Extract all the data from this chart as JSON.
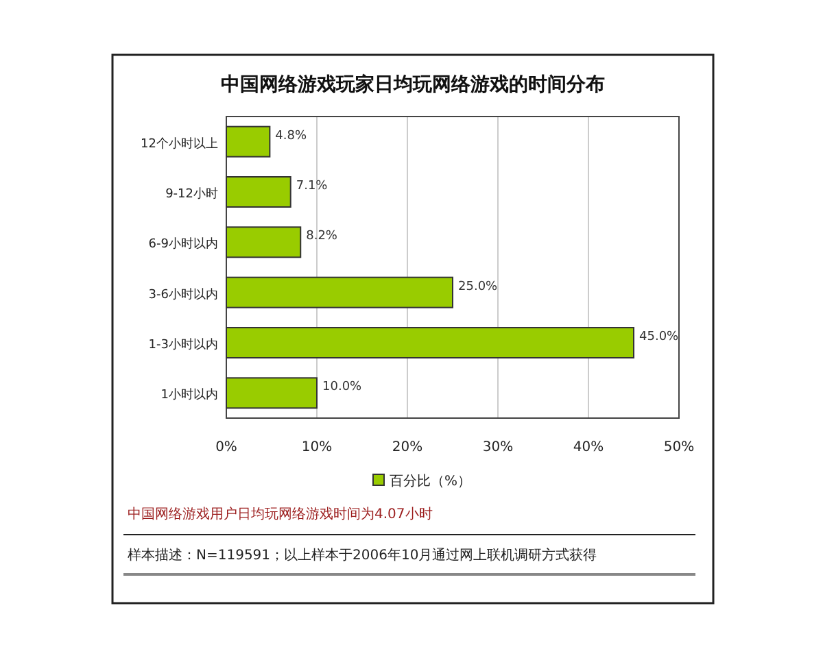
{
  "chart_data": {
    "type": "bar",
    "orientation": "horizontal",
    "title": "中国网络游戏玩家日均玩网络游戏的时间分布",
    "categories": [
      "12个小时以上",
      "9-12小时",
      "6-9小时以内",
      "3-6小时以内",
      "1-3小时以内",
      "1小时以内"
    ],
    "series": [
      {
        "name": "百分比（%）",
        "color": "#99cc00",
        "values": [
          4.8,
          7.1,
          8.2,
          25.0,
          45.0,
          10.0
        ],
        "value_labels": [
          "4.8%",
          "7.1%",
          "8.2%",
          "25.0%",
          "45.0%",
          "10.0%"
        ]
      }
    ],
    "xlim": [
      0,
      50
    ],
    "xticks": [
      {
        "value": 0,
        "label": "0%"
      },
      {
        "value": 10,
        "label": "10%"
      },
      {
        "value": 20,
        "label": "20%"
      },
      {
        "value": 30,
        "label": "30%"
      },
      {
        "value": 40,
        "label": "40%"
      },
      {
        "value": 50,
        "label": "50%"
      }
    ],
    "grid": "x",
    "legend": "bottom",
    "annotations": [
      "中国网络游戏用户日均玩网络游戏时间为4.07小时",
      "样本描述：N=119591；以上样本于2006年10月通过网上联机调研方式获得"
    ]
  }
}
